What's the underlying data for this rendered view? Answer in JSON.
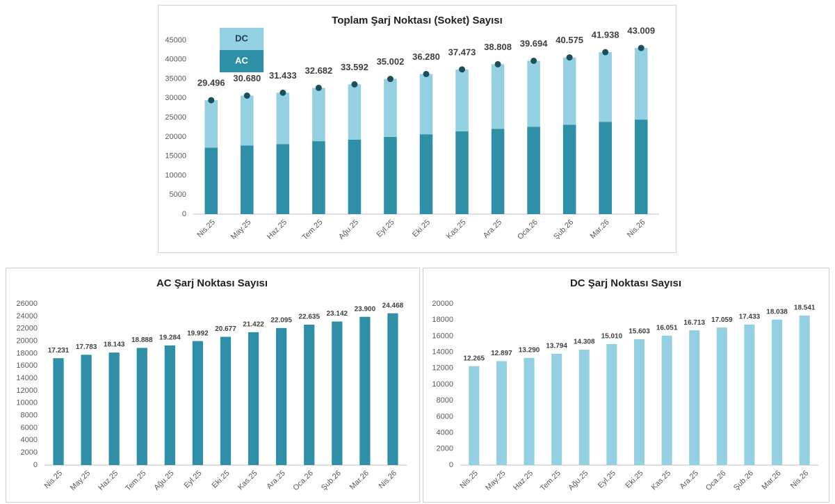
{
  "chart_data": [
    {
      "type": "bar",
      "stacked": true,
      "title": "Toplam Şarj Noktası (Soket) Sayısı",
      "categories": [
        "Nis.25",
        "May.25",
        "Haz.25",
        "Tem.25",
        "Ağu.25",
        "Eyl.25",
        "Eki.25",
        "Kas.25",
        "Ara.25",
        "Oca.26",
        "Şub.26",
        "Mar.26",
        "Nis.26"
      ],
      "series": [
        {
          "name": "AC",
          "color": "#2e8fa6",
          "values": [
            17231,
            17783,
            18143,
            18888,
            19284,
            19992,
            20677,
            21422,
            22095,
            22635,
            23142,
            23900,
            24468
          ]
        },
        {
          "name": "DC",
          "color": "#93d0e2",
          "values": [
            12265,
            12897,
            13290,
            13794,
            14308,
            15010,
            15603,
            16051,
            16713,
            17059,
            17433,
            18038,
            18541
          ]
        }
      ],
      "totals": {
        "color": "#1c4f5c",
        "values": [
          29496,
          30680,
          31433,
          32682,
          33592,
          35002,
          36280,
          37473,
          38808,
          39694,
          40575,
          41938,
          43009
        ],
        "value_labels": [
          "29.496",
          "30.680",
          "31.433",
          "32.682",
          "33.592",
          "35.002",
          "36.280",
          "37.473",
          "38.808",
          "39.694",
          "40.575",
          "41.938",
          "43.009"
        ]
      },
      "ylim": [
        0,
        45000
      ],
      "yticks": [
        0,
        5000,
        10000,
        15000,
        20000,
        25000,
        30000,
        35000,
        40000,
        45000
      ],
      "grid": false
    },
    {
      "type": "bar",
      "title": "AC Şarj Noktası Sayısı",
      "categories": [
        "Nis.25",
        "May.25",
        "Haz.25",
        "Tem.25",
        "Ağu.25",
        "Eyl.25",
        "Eki.25",
        "Kas.25",
        "Ara.25",
        "Oca.26",
        "Şub.26",
        "Mar.26",
        "Nis.26"
      ],
      "values": [
        17231,
        17783,
        18143,
        18888,
        19284,
        19992,
        20677,
        21422,
        22095,
        22635,
        23142,
        23900,
        24468
      ],
      "value_labels": [
        "17.231",
        "17.783",
        "18.143",
        "18.888",
        "19.284",
        "19.992",
        "20.677",
        "21.422",
        "22.095",
        "22.635",
        "23.142",
        "23.900",
        "24.468"
      ],
      "color": "#2e8fa6",
      "ylim": [
        0,
        26000
      ],
      "yticks": [
        0,
        2000,
        4000,
        6000,
        8000,
        10000,
        12000,
        14000,
        16000,
        18000,
        20000,
        22000,
        24000,
        26000
      ],
      "grid": false
    },
    {
      "type": "bar",
      "title": "DC Şarj Noktası Sayısı",
      "categories": [
        "Nis.25",
        "May.25",
        "Haz.25",
        "Tem.25",
        "Ağu.25",
        "Eyl.25",
        "Eki.25",
        "Kas.25",
        "Ara.25",
        "Oca.26",
        "Şub.26",
        "Mar.26",
        "Nis.26"
      ],
      "values": [
        12265,
        12897,
        13290,
        13794,
        14308,
        15010,
        15603,
        16051,
        16713,
        17059,
        17433,
        18038,
        18541
      ],
      "value_labels": [
        "12.265",
        "12.897",
        "13.290",
        "13.794",
        "14.308",
        "15.010",
        "15.603",
        "16.051",
        "16.713",
        "17.059",
        "17.433",
        "18.038",
        "18.541"
      ],
      "color": "#93d0e2",
      "ylim": [
        0,
        20000
      ],
      "yticks": [
        0,
        2000,
        4000,
        6000,
        8000,
        10000,
        12000,
        14000,
        16000,
        18000,
        20000
      ],
      "grid": false
    }
  ]
}
